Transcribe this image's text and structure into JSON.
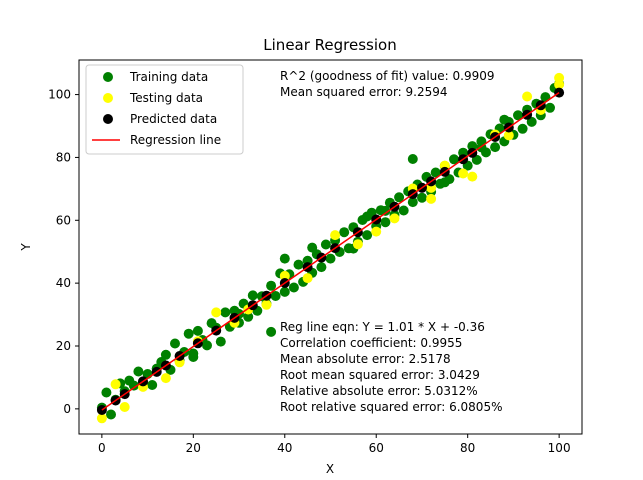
{
  "chart_data": {
    "type": "scatter",
    "title": "Linear Regression",
    "xlabel": "X",
    "ylabel": "Y",
    "xlim": [
      -5,
      105
    ],
    "ylim": [
      -8,
      111
    ],
    "xticks": [
      0,
      20,
      40,
      60,
      80,
      100
    ],
    "yticks": [
      0,
      20,
      40,
      60,
      80,
      100
    ],
    "grid": false,
    "legend_position": "top-left",
    "regression": {
      "slope": 1.01,
      "intercept": -0.36,
      "x_range": [
        0,
        100
      ]
    },
    "series": [
      {
        "name": "Training data",
        "kind": "scatter",
        "color": "#008000",
        "points": [
          [
            0,
            0.4
          ],
          [
            1,
            5.2
          ],
          [
            2,
            -1.8
          ],
          [
            3,
            2.9
          ],
          [
            4,
            8.1
          ],
          [
            5,
            5.6
          ],
          [
            6,
            9.0
          ],
          [
            7,
            7.4
          ],
          [
            8,
            11.9
          ],
          [
            9,
            8.3
          ],
          [
            10,
            11.1
          ],
          [
            11,
            7.6
          ],
          [
            12,
            12.8
          ],
          [
            13,
            14.9
          ],
          [
            14,
            17.2
          ],
          [
            15,
            12.4
          ],
          [
            16,
            20.8
          ],
          [
            17,
            15.3
          ],
          [
            18,
            18.1
          ],
          [
            19,
            23.9
          ],
          [
            20,
            17.6
          ],
          [
            21,
            24.8
          ],
          [
            22,
            21.9
          ],
          [
            23,
            20.2
          ],
          [
            24,
            27.3
          ],
          [
            25,
            25.8
          ],
          [
            26,
            21.4
          ],
          [
            27,
            30.7
          ],
          [
            28,
            26.1
          ],
          [
            29,
            31.2
          ],
          [
            30,
            27.4
          ],
          [
            31,
            33.5
          ],
          [
            32,
            29.3
          ],
          [
            33,
            36.1
          ],
          [
            34,
            31.2
          ],
          [
            35,
            35.8
          ],
          [
            36,
            33.4
          ],
          [
            37,
            39.2
          ],
          [
            38,
            35.9
          ],
          [
            39,
            43.1
          ],
          [
            40,
            37.2
          ],
          [
            41,
            42.8
          ],
          [
            42,
            38.6
          ],
          [
            43,
            45.9
          ],
          [
            44,
            40.4
          ],
          [
            45,
            47.1
          ],
          [
            46,
            43.3
          ],
          [
            47,
            49.2
          ],
          [
            48,
            45.1
          ],
          [
            49,
            52.3
          ],
          [
            50,
            47.8
          ],
          [
            51,
            53.6
          ],
          [
            52,
            49.9
          ],
          [
            53,
            56.2
          ],
          [
            54,
            51.1
          ],
          [
            55,
            57.8
          ],
          [
            56,
            53.2
          ],
          [
            57,
            60.1
          ],
          [
            58,
            55.3
          ],
          [
            59,
            62.4
          ],
          [
            60,
            58.1
          ],
          [
            61,
            63.2
          ],
          [
            62,
            59.4
          ],
          [
            63,
            65.6
          ],
          [
            64,
            61.7
          ],
          [
            65,
            67.3
          ],
          [
            66,
            63.1
          ],
          [
            67,
            69.2
          ],
          [
            68,
            65.8
          ],
          [
            69,
            71.4
          ],
          [
            70,
            67.2
          ],
          [
            71,
            73.8
          ],
          [
            72,
            69.1
          ],
          [
            73,
            75.2
          ],
          [
            74,
            71.6
          ],
          [
            75,
            77.3
          ],
          [
            76,
            73.1
          ],
          [
            77,
            79.4
          ],
          [
            78,
            75.2
          ],
          [
            79,
            81.5
          ],
          [
            80,
            77.4
          ],
          [
            81,
            83.6
          ],
          [
            82,
            79.2
          ],
          [
            83,
            85.1
          ],
          [
            84,
            81.6
          ],
          [
            85,
            87.4
          ],
          [
            86,
            83.3
          ],
          [
            87,
            89.2
          ],
          [
            88,
            85.1
          ],
          [
            89,
            91.3
          ],
          [
            90,
            87.2
          ],
          [
            91,
            93.4
          ],
          [
            92,
            89.1
          ],
          [
            93,
            95.2
          ],
          [
            94,
            91.3
          ],
          [
            95,
            97.1
          ],
          [
            96,
            93.4
          ],
          [
            97,
            99.2
          ],
          [
            98,
            95.8
          ],
          [
            99,
            102.1
          ],
          [
            100,
            103.4
          ],
          [
            40,
            47.8
          ],
          [
            46,
            51.3
          ],
          [
            68,
            79.5
          ],
          [
            37,
            24.5
          ],
          [
            55,
            51.0
          ],
          [
            30,
            30.2
          ],
          [
            20,
            16.5
          ],
          [
            62,
            63.0
          ],
          [
            83,
            83.2
          ],
          [
            88,
            92.0
          ],
          [
            75,
            72.1
          ],
          [
            58,
            61.2
          ]
        ]
      },
      {
        "name": "Testing data",
        "kind": "scatter",
        "color": "#ffff00",
        "points": [
          [
            0,
            -3.0
          ],
          [
            3,
            7.8
          ],
          [
            5,
            0.6
          ],
          [
            9,
            7.0
          ],
          [
            14,
            9.8
          ],
          [
            17,
            14.8
          ],
          [
            21,
            21.5
          ],
          [
            25,
            30.7
          ],
          [
            29,
            27.4
          ],
          [
            36,
            33.1
          ],
          [
            40,
            42.3
          ],
          [
            45,
            41.6
          ],
          [
            51,
            55.3
          ],
          [
            56,
            52.4
          ],
          [
            60,
            56.4
          ],
          [
            64,
            60.6
          ],
          [
            68,
            70.1
          ],
          [
            72,
            66.8
          ],
          [
            75,
            77.4
          ],
          [
            79,
            74.9
          ],
          [
            81,
            73.9
          ],
          [
            86,
            87.3
          ],
          [
            89,
            87.0
          ],
          [
            93,
            99.4
          ],
          [
            96,
            95.1
          ],
          [
            100,
            105.3
          ],
          [
            100,
            103.2
          ],
          [
            72,
            70.3
          ],
          [
            32,
            31.6
          ]
        ]
      },
      {
        "name": "Predicted data",
        "kind": "scatter",
        "color": "#000000",
        "points": [
          [
            0,
            -0.36
          ],
          [
            3,
            2.67
          ],
          [
            5,
            4.69
          ],
          [
            9,
            8.73
          ],
          [
            14,
            13.78
          ],
          [
            17,
            16.81
          ],
          [
            21,
            20.85
          ],
          [
            25,
            24.89
          ],
          [
            29,
            28.93
          ],
          [
            36,
            36.0
          ],
          [
            40,
            40.04
          ],
          [
            45,
            45.09
          ],
          [
            51,
            51.15
          ],
          [
            56,
            56.2
          ],
          [
            60,
            60.24
          ],
          [
            64,
            64.28
          ],
          [
            68,
            68.32
          ],
          [
            72,
            72.36
          ],
          [
            75,
            75.39
          ],
          [
            79,
            79.43
          ],
          [
            81,
            81.45
          ],
          [
            86,
            86.5
          ],
          [
            89,
            89.53
          ],
          [
            93,
            93.57
          ],
          [
            96,
            96.6
          ],
          [
            100,
            100.64
          ],
          [
            12,
            11.76
          ],
          [
            33,
            32.97
          ],
          [
            48,
            48.12
          ],
          [
            70,
            70.34
          ]
        ]
      },
      {
        "name": "Regression line",
        "kind": "line",
        "color": "#ff0000"
      }
    ],
    "annotations": {
      "top": [
        "R^2 (goodness of fit) value: 0.9909",
        "Mean squared error: 9.2594"
      ],
      "bottom": [
        "Reg line eqn: Y = 1.01 * X + -0.36",
        "Correlation coefficient: 0.9955",
        "Mean absolute error: 2.5178",
        "Root mean squared error: 3.0429",
        "Relative absolute error: 5.0312%",
        "Root relative squared error: 6.0805%"
      ]
    }
  }
}
